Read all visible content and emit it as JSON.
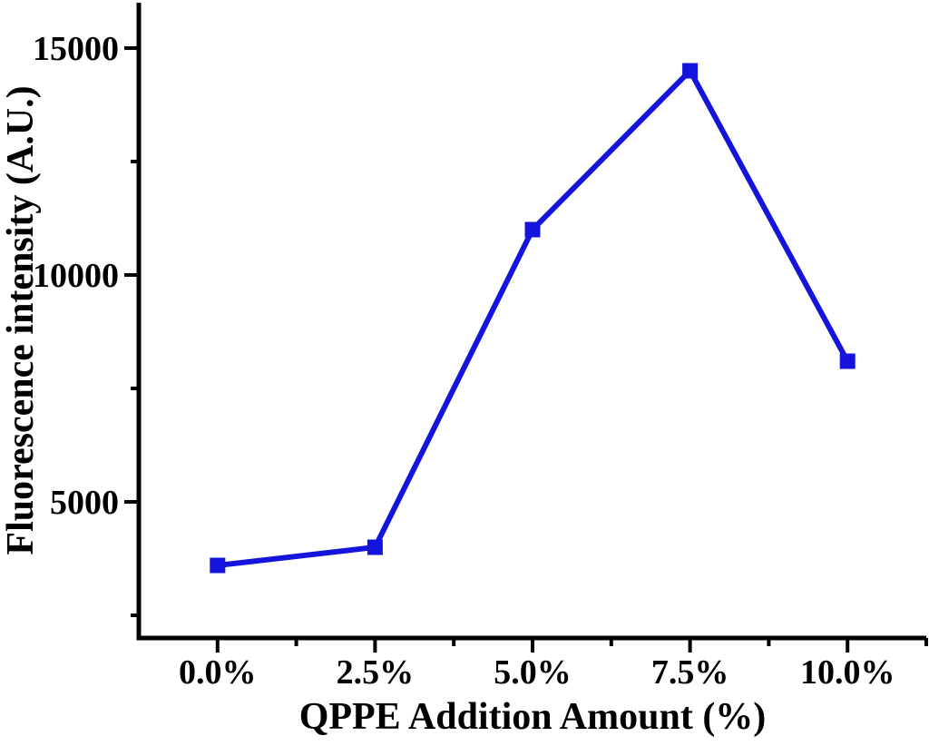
{
  "chart_data": {
    "type": "line",
    "title": "",
    "categories": [
      "0.0%",
      "2.5%",
      "5.0%",
      "7.5%",
      "10.0%"
    ],
    "x_values": [
      0.0,
      2.5,
      5.0,
      7.5,
      10.0
    ],
    "series": [
      {
        "name": "Fluorescence intensity",
        "values": [
          3600,
          4000,
          11000,
          14500,
          8100
        ]
      }
    ],
    "xlabel": "QPPE Addition Amount (%)",
    "ylabel": "Fluorescence intensity (A.U.)",
    "xlim": [
      -1.25,
      11.25
    ],
    "ylim": [
      2000,
      16000
    ],
    "y_major_ticks": [
      {
        "value": 5000,
        "label": "5000"
      },
      {
        "value": 10000,
        "label": "10000"
      },
      {
        "value": 15000,
        "label": "15000"
      }
    ],
    "y_minor_ticks": [
      2500,
      7500,
      12500
    ],
    "x_minor_ticks": [
      1.25,
      3.75,
      6.25,
      8.75,
      11.25
    ],
    "grid": false,
    "legend": "none",
    "line_color": "#1414dd",
    "line_width": 6,
    "marker_shape": "square",
    "marker_size": 17,
    "axis_color": "#000000",
    "background_color": "#ffffff"
  }
}
